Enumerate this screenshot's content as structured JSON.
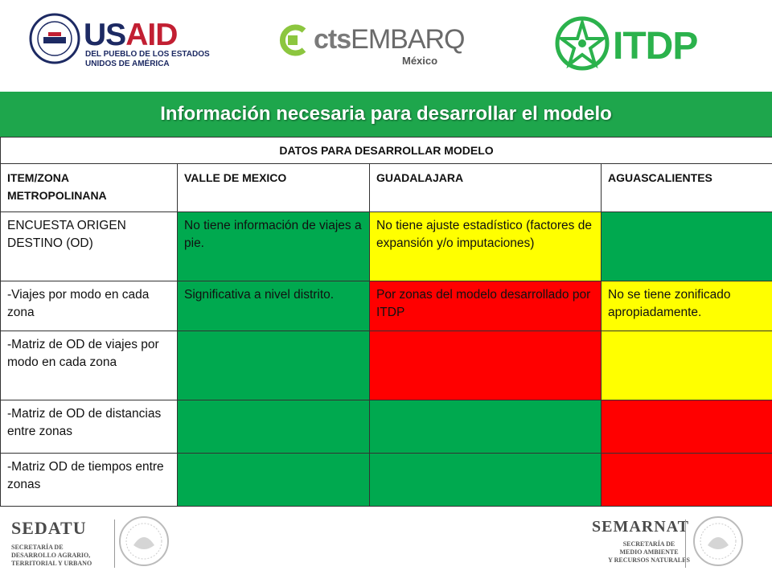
{
  "logos": {
    "usaid": {
      "word_blue": "US",
      "word_red": "AID",
      "sub_line1": "DEL PUEBLO DE LOS ESTADOS",
      "sub_line2": "UNIDOS DE AMÉRICA",
      "icon": "usaid-seal-icon"
    },
    "cts": {
      "word_lower": "cts",
      "word_upper": "EMBARQ",
      "sub": "México",
      "icon": "cts-mark-icon"
    },
    "itdp": {
      "word": "ITDP",
      "icon": "itdp-star-icon"
    },
    "sedatu": {
      "word": "SEDATU",
      "sub_line1": "SECRETARÍA DE",
      "sub_line2": "DESARROLLO AGRARIO,",
      "sub_line3": "TERRITORIAL Y URBANO"
    },
    "semarnat": {
      "word": "SEMARNAT",
      "sub_line1": "SECRETARÍA DE",
      "sub_line2": "MEDIO AMBIENTE",
      "sub_line3": "Y RECURSOS NATURALES"
    }
  },
  "colors": {
    "banner": "#1ea64c",
    "green": "#00a94f",
    "yellow": "#ffff00",
    "red": "#ff0000"
  },
  "banner_title": "Información necesaria para desarrollar el modelo",
  "table": {
    "caption": "DATOS PARA DESARROLLAR MODELO",
    "headers": [
      "ITEM/ZONA METROPOLINANA",
      "VALLE DE MEXICO",
      "GUADALAJARA",
      "AGUASCALIENTES"
    ],
    "rows": [
      {
        "cells": [
          {
            "text": "ENCUESTA ORIGEN DESTINO (OD)",
            "status": "white"
          },
          {
            "text": "No tiene información de viajes a pie.",
            "status": "green"
          },
          {
            "text": "No tiene ajuste estadístico (factores de expansión y/o imputaciones)",
            "status": "yellow"
          },
          {
            "text": "",
            "status": "green"
          }
        ]
      },
      {
        "cells": [
          {
            "text": "-Viajes por modo en cada zona",
            "status": "white"
          },
          {
            "text": "Significativa a nivel distrito.",
            "status": "green"
          },
          {
            "text": "Por zonas del modelo desarrollado por ITDP",
            "status": "red"
          },
          {
            "text": "No se tiene zonificado apropiadamente.",
            "status": "yellow"
          }
        ]
      },
      {
        "cells": [
          {
            "text": "-Matriz de OD de viajes por modo en cada zona",
            "status": "white"
          },
          {
            "text": "",
            "status": "green"
          },
          {
            "text": "",
            "status": "red"
          },
          {
            "text": "",
            "status": "yellow"
          }
        ]
      },
      {
        "cells": [
          {
            "text": "-Matriz de OD de distancias entre zonas",
            "status": "white"
          },
          {
            "text": "",
            "status": "green"
          },
          {
            "text": "",
            "status": "green"
          },
          {
            "text": "",
            "status": "red"
          }
        ]
      },
      {
        "cells": [
          {
            "text": "-Matriz OD de tiempos entre zonas",
            "status": "white"
          },
          {
            "text": "",
            "status": "green"
          },
          {
            "text": "",
            "status": "green"
          },
          {
            "text": "",
            "status": "red"
          }
        ]
      }
    ]
  }
}
